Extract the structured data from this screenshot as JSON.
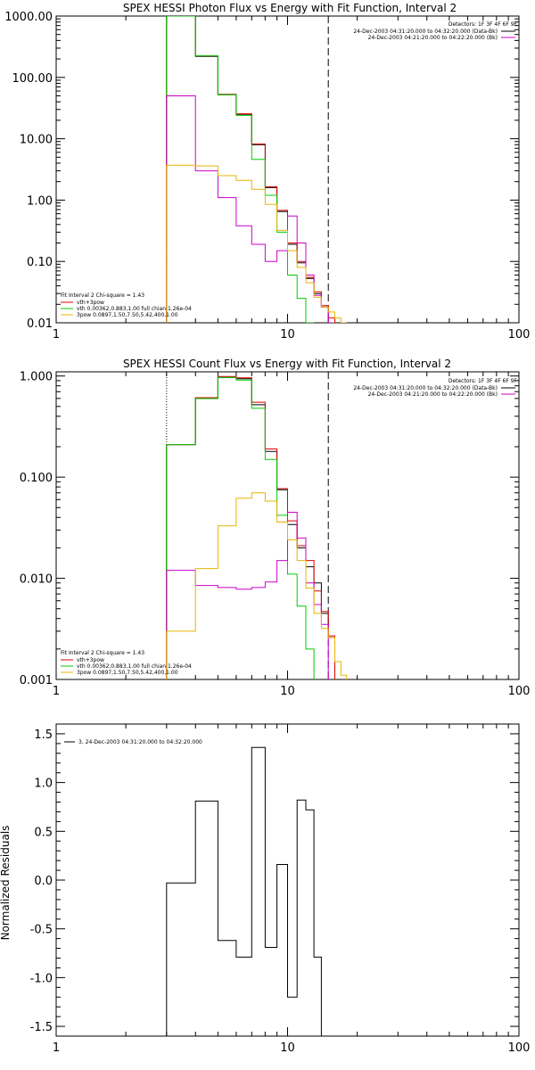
{
  "colors": {
    "black": "#000000",
    "red": "#e00000",
    "green": "#00cc00",
    "magenta": "#cc00cc",
    "orange": "#e8b400"
  },
  "chart_data": [
    {
      "id": "photon",
      "type": "line",
      "style": "step-histogram",
      "title": "SPEX HESSI Photon Flux vs Energy with Fit Function, Interval 2",
      "xlabel": "",
      "ylabel": "",
      "xscale": "log",
      "yscale": "log",
      "xlim": [
        1,
        100
      ],
      "ylim": [
        0.01,
        1000
      ],
      "xticks": [
        {
          "v": 1,
          "label": "1"
        },
        {
          "v": 10,
          "label": "10"
        },
        {
          "v": 100,
          "label": "100"
        }
      ],
      "yticks": [
        {
          "v": 0.01,
          "label": "0.01"
        },
        {
          "v": 0.1,
          "label": "0.10"
        },
        {
          "v": 1,
          "label": "1.00"
        },
        {
          "v": 10,
          "label": "10.00"
        },
        {
          "v": 100,
          "label": "100.00"
        },
        {
          "v": 1000,
          "label": "1000.00"
        }
      ],
      "vlines": [
        {
          "x": 3,
          "style": "dotted"
        },
        {
          "x": 15,
          "style": "dashed"
        }
      ],
      "edges": [
        3,
        4,
        5,
        6,
        7,
        8,
        9,
        10,
        11,
        12,
        13,
        14,
        15,
        16,
        17,
        18
      ],
      "series": [
        {
          "color": "black",
          "values": [
            1000,
            220,
            52,
            25,
            8.0,
            1.6,
            0.65,
            0.19,
            0.095,
            0.053,
            0.03,
            0.018,
            null,
            null,
            null
          ]
        },
        {
          "color": "red",
          "values": [
            1000,
            225,
            53,
            25.5,
            8.2,
            1.65,
            0.68,
            0.2,
            0.1,
            0.055,
            0.032,
            0.019,
            0.012,
            null,
            null
          ]
        },
        {
          "color": "green",
          "values": [
            1000,
            225,
            52,
            24,
            4.6,
            1.2,
            0.3,
            0.06,
            0.025,
            0.01,
            null,
            null,
            null,
            null,
            null
          ]
        },
        {
          "color": "magenta",
          "values": [
            50,
            3.0,
            1.1,
            0.38,
            0.19,
            0.1,
            0.15,
            0.55,
            0.2,
            0.06,
            0.028,
            0.018,
            0.0075,
            null,
            null
          ]
        },
        {
          "color": "orange",
          "values": [
            3.7,
            3.6,
            2.5,
            2.1,
            1.5,
            0.85,
            0.32,
            0.15,
            0.08,
            0.045,
            0.026,
            0.018,
            0.015,
            0.012,
            0.01
          ]
        }
      ],
      "legend_right": {
        "header": "Detectors: 1F 3F 4F 6F 9F",
        "entries": [
          {
            "text": "24-Dec-2003 04:31:20.000 to 04:32:20.000 (Data-Bk)",
            "color": "black"
          },
          {
            "text": "24-Dec-2003 04:21:20.000 to 04:22:20.000 (Bk)",
            "color": "magenta"
          }
        ]
      },
      "legend_left": {
        "header": "Fit Interval 2   Chi-square = 1.43",
        "entries": [
          {
            "text": "vth+3pow",
            "color": "red"
          },
          {
            "text": "vth 0.00362,0.883,1.00   full chian 1.26e-04",
            "color": "green"
          },
          {
            "text": "3pow 0.0897,1.50,7.50,5.42,400,1.00",
            "color": "orange"
          }
        ]
      }
    },
    {
      "id": "count",
      "type": "line",
      "style": "step-histogram",
      "title": "SPEX HESSI Count Flux vs Energy with Fit Function, Interval 2",
      "xlabel": "",
      "ylabel": "",
      "xscale": "log",
      "yscale": "log",
      "xlim": [
        1,
        100
      ],
      "ylim": [
        0.001,
        1.1
      ],
      "xticks": [
        {
          "v": 1,
          "label": "1"
        },
        {
          "v": 10,
          "label": "10"
        },
        {
          "v": 100,
          "label": "100"
        }
      ],
      "yticks": [
        {
          "v": 0.001,
          "label": "0.001"
        },
        {
          "v": 0.01,
          "label": "0.010"
        },
        {
          "v": 0.1,
          "label": "0.100"
        },
        {
          "v": 1,
          "label": "1.000"
        }
      ],
      "vlines": [
        {
          "x": 3,
          "style": "dotted"
        },
        {
          "x": 15,
          "style": "dashed"
        }
      ],
      "edges": [
        3,
        4,
        5,
        6,
        7,
        8,
        9,
        10,
        11,
        12,
        13,
        14,
        15,
        16,
        17,
        18
      ],
      "series": [
        {
          "color": "black",
          "values": [
            0.21,
            0.6,
            0.97,
            0.94,
            0.52,
            0.18,
            0.075,
            0.034,
            0.02,
            0.013,
            0.009,
            0.0045,
            0.0026,
            null,
            null
          ]
        },
        {
          "color": "red",
          "values": [
            0.21,
            0.61,
            0.99,
            0.96,
            0.55,
            0.19,
            0.077,
            0.037,
            0.021,
            0.015,
            0.0075,
            0.0047,
            0.0027,
            null,
            null
          ]
        },
        {
          "color": "green",
          "values": [
            0.21,
            0.6,
            0.97,
            0.91,
            0.48,
            0.15,
            0.042,
            0.011,
            0.0053,
            0.002,
            null,
            null,
            null,
            null,
            null
          ]
        },
        {
          "color": "magenta",
          "values": [
            0.012,
            0.0085,
            0.0081,
            0.0078,
            0.0081,
            0.0092,
            0.015,
            0.045,
            0.025,
            0.009,
            0.0055,
            0.0035,
            null,
            null,
            null
          ]
        },
        {
          "color": "orange",
          "values": [
            0.003,
            0.0125,
            0.033,
            0.062,
            0.07,
            0.058,
            0.036,
            0.024,
            0.015,
            0.008,
            0.0045,
            0.0032,
            0.0026,
            0.0015,
            0.0011
          ]
        }
      ],
      "legend_right": {
        "header": "Detectors: 1F 3F 4F 6F 9F",
        "entries": [
          {
            "text": "24-Dec-2003 04:31:20.000 to 04:32:20.000 (Data-Bk)",
            "color": "black"
          },
          {
            "text": "24-Dec-2003 04:21:20.000 to 04:22:20.000 (Bk)",
            "color": "magenta"
          }
        ]
      },
      "legend_left": {
        "header": "Fit Interval 2   Chi-square = 1.43",
        "entries": [
          {
            "text": "vth+3pow",
            "color": "red"
          },
          {
            "text": "vth 0.00362,0.883,1.00   full chian 1.26e-04",
            "color": "green"
          },
          {
            "text": "3pow 0.0897,1.50,7.50,5.42,400,1.00",
            "color": "orange"
          }
        ]
      }
    },
    {
      "id": "residuals",
      "type": "line",
      "style": "step-histogram",
      "title": "",
      "xlabel": "",
      "ylabel": "Normalized Residuals",
      "xscale": "log",
      "yscale": "linear",
      "xlim": [
        1,
        100
      ],
      "ylim": [
        -1.6,
        1.6
      ],
      "xticks": [
        {
          "v": 1,
          "label": "1"
        },
        {
          "v": 10,
          "label": "10"
        },
        {
          "v": 100,
          "label": "100"
        }
      ],
      "yticks": [
        {
          "v": -1.5,
          "label": "-1.5"
        },
        {
          "v": -1.0,
          "label": "-1.0"
        },
        {
          "v": -0.5,
          "label": "-0.5"
        },
        {
          "v": 0.0,
          "label": "0.0"
        },
        {
          "v": 0.5,
          "label": "0.5"
        },
        {
          "v": 1.0,
          "label": "1.0"
        },
        {
          "v": 1.5,
          "label": "1.5"
        }
      ],
      "vlines": [],
      "edges": [
        3,
        4,
        5,
        6,
        7,
        8,
        9,
        10,
        11,
        12,
        13,
        14,
        15
      ],
      "series": [
        {
          "color": "black",
          "values": [
            -0.03,
            0.81,
            -0.62,
            -0.79,
            1.36,
            -0.69,
            0.16,
            -1.2,
            0.82,
            0.72,
            -0.79,
            -1.6
          ]
        }
      ],
      "legend_right": null,
      "legend_left": {
        "header": "",
        "entries": [
          {
            "text": "3, 24-Dec-2003 04:31:20.000 to 04:32:20.000",
            "color": "black"
          }
        ]
      }
    }
  ]
}
